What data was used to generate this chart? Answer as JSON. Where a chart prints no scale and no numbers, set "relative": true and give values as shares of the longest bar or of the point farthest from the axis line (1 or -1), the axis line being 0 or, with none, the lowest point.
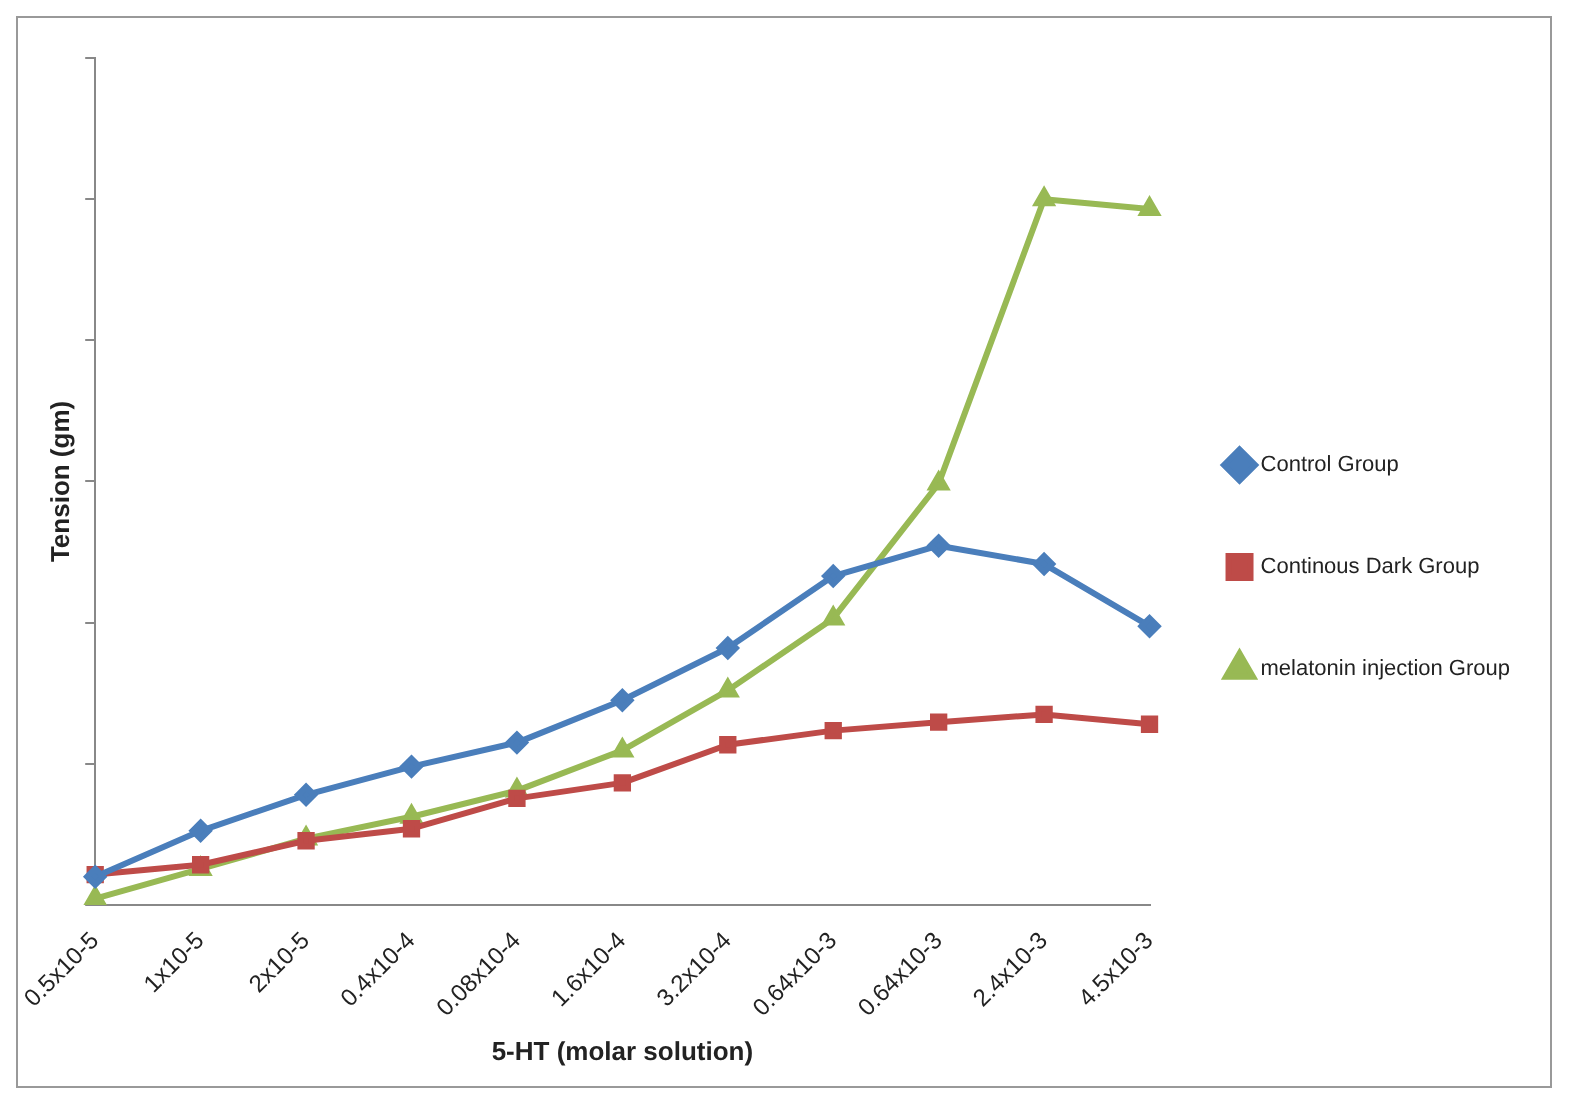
{
  "chart_data": {
    "type": "line",
    "relative": true,
    "xlabel": "5-HT (molar solution)",
    "ylabel": "Tension (gm)",
    "legend": "right",
    "grid": false,
    "line_style": "solid",
    "categories": [
      "0.5x10-5",
      "1x10-5",
      "2x10-5",
      "0.4x10-4",
      "0.08x10-4",
      "1.6x10-4",
      "3.2x10-4",
      "0.64x10-3",
      "0.64x10-3",
      "2.4x10-3",
      "4.5x10-3"
    ],
    "series": [
      {
        "name": "Control Group",
        "color": "#4a7ebb",
        "marker": "diamond",
        "values": [
          0.04,
          0.105,
          0.156,
          0.196,
          0.23,
          0.29,
          0.364,
          0.466,
          0.509,
          0.483,
          0.395
        ]
      },
      {
        "name": "Continous Dark Group",
        "color": "#be4b48",
        "marker": "square",
        "values": [
          0.043,
          0.057,
          0.091,
          0.108,
          0.151,
          0.173,
          0.227,
          0.247,
          0.259,
          0.27,
          0.256
        ]
      },
      {
        "name": "melatonin injection Group",
        "color": "#98b954",
        "marker": "triangle",
        "values": [
          0.009,
          0.051,
          0.094,
          0.125,
          0.162,
          0.219,
          0.304,
          0.406,
          0.597,
          1,
          0.986
        ]
      }
    ]
  }
}
